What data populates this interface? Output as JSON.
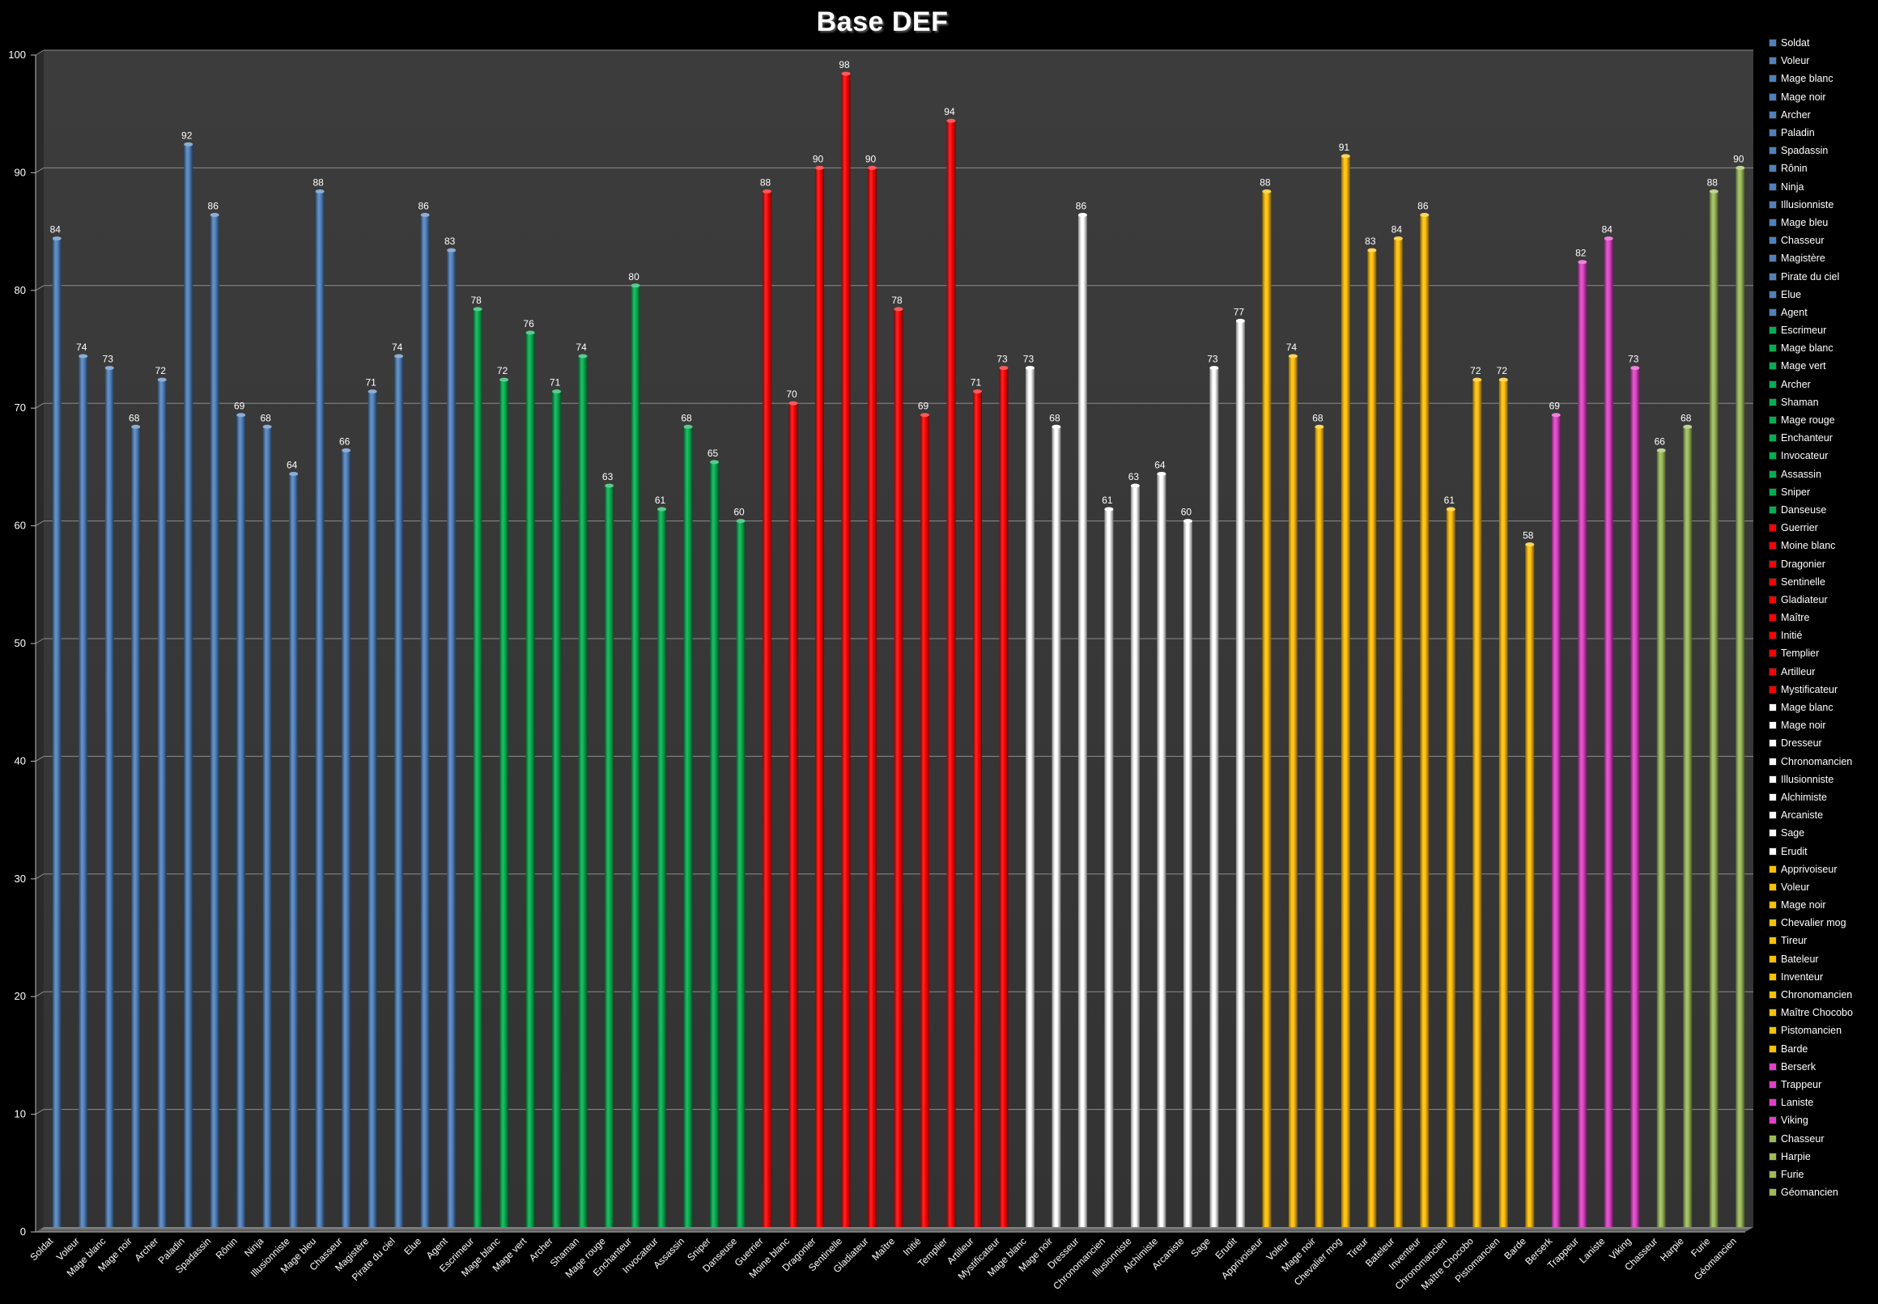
{
  "chart_data": {
    "type": "bar",
    "title": "Base DEF",
    "ylim": [
      0,
      100
    ],
    "yticks": [
      0,
      10,
      20,
      30,
      40,
      50,
      60,
      70,
      80,
      90,
      100
    ],
    "grid": true,
    "legend_position": "right",
    "background": "#3a3a3a",
    "series": [
      {
        "name": "Soldat",
        "color": "#4f81bd",
        "value": 84
      },
      {
        "name": "Voleur",
        "color": "#4f81bd",
        "value": 74
      },
      {
        "name": "Mage blanc",
        "color": "#4f81bd",
        "value": 73
      },
      {
        "name": "Mage noir",
        "color": "#4f81bd",
        "value": 68
      },
      {
        "name": "Archer",
        "color": "#4f81bd",
        "value": 72
      },
      {
        "name": "Paladin",
        "color": "#4f81bd",
        "value": 92
      },
      {
        "name": "Spadassin",
        "color": "#4f81bd",
        "value": 86
      },
      {
        "name": "Rônin",
        "color": "#4f81bd",
        "value": 69
      },
      {
        "name": "Ninja",
        "color": "#4f81bd",
        "value": 68
      },
      {
        "name": "Illusionniste",
        "color": "#4f81bd",
        "value": 64
      },
      {
        "name": "Mage bleu",
        "color": "#4f81bd",
        "value": 88
      },
      {
        "name": "Chasseur",
        "color": "#4f81bd",
        "value": 66
      },
      {
        "name": "Magistère",
        "color": "#4f81bd",
        "value": 71
      },
      {
        "name": "Pirate du ciel",
        "color": "#4f81bd",
        "value": 74
      },
      {
        "name": "Elue",
        "color": "#4f81bd",
        "value": 86
      },
      {
        "name": "Agent",
        "color": "#4f81bd",
        "value": 83
      },
      {
        "name": "Escrimeur",
        "color": "#00b050",
        "value": 78
      },
      {
        "name": "Mage blanc",
        "color": "#00b050",
        "value": 72
      },
      {
        "name": "Mage vert",
        "color": "#00b050",
        "value": 76
      },
      {
        "name": "Archer",
        "color": "#00b050",
        "value": 71
      },
      {
        "name": "Shaman",
        "color": "#00b050",
        "value": 74
      },
      {
        "name": "Mage rouge",
        "color": "#00b050",
        "value": 63
      },
      {
        "name": "Enchanteur",
        "color": "#00b050",
        "value": 80
      },
      {
        "name": "Invocateur",
        "color": "#00b050",
        "value": 61
      },
      {
        "name": "Assassin",
        "color": "#00b050",
        "value": 68
      },
      {
        "name": "Sniper",
        "color": "#00b050",
        "value": 65
      },
      {
        "name": "Danseuse",
        "color": "#00b050",
        "value": 60
      },
      {
        "name": "Guerrier",
        "color": "#ff0000",
        "value": 88
      },
      {
        "name": "Moine blanc",
        "color": "#ff0000",
        "value": 70
      },
      {
        "name": "Dragonier",
        "color": "#ff0000",
        "value": 90
      },
      {
        "name": "Sentinelle",
        "color": "#ff0000",
        "value": 98
      },
      {
        "name": "Gladiateur",
        "color": "#ff0000",
        "value": 90
      },
      {
        "name": "Maître",
        "color": "#ff0000",
        "value": 78
      },
      {
        "name": "Initié",
        "color": "#ff0000",
        "value": 69
      },
      {
        "name": "Templier",
        "color": "#ff0000",
        "value": 94
      },
      {
        "name": "Artilleur",
        "color": "#ff0000",
        "value": 71
      },
      {
        "name": "Mystificateur",
        "color": "#ff0000",
        "value": 73
      },
      {
        "name": "Mage blanc",
        "color": "#ffffff",
        "value": 73
      },
      {
        "name": "Mage noir",
        "color": "#ffffff",
        "value": 68
      },
      {
        "name": "Dresseur",
        "color": "#ffffff",
        "value": 86
      },
      {
        "name": "Chronomancien",
        "color": "#ffffff",
        "value": 61
      },
      {
        "name": "Illusionniste",
        "color": "#ffffff",
        "value": 63
      },
      {
        "name": "Alchimiste",
        "color": "#ffffff",
        "value": 64
      },
      {
        "name": "Arcaniste",
        "color": "#ffffff",
        "value": 60
      },
      {
        "name": "Sage",
        "color": "#ffffff",
        "value": 73
      },
      {
        "name": "Erudit",
        "color": "#ffffff",
        "value": 77
      },
      {
        "name": "Apprivoiseur",
        "color": "#ffc000",
        "value": 88
      },
      {
        "name": "Voleur",
        "color": "#ffc000",
        "value": 74
      },
      {
        "name": "Mage noir",
        "color": "#ffc000",
        "value": 68
      },
      {
        "name": "Chevalier mog",
        "color": "#ffc000",
        "value": 91
      },
      {
        "name": "Tireur",
        "color": "#ffc000",
        "value": 83
      },
      {
        "name": "Bateleur",
        "color": "#ffc000",
        "value": 84
      },
      {
        "name": "Inventeur",
        "color": "#ffc000",
        "value": 86
      },
      {
        "name": "Chronomancien",
        "color": "#ffc000",
        "value": 61
      },
      {
        "name": "Maître Chocobo",
        "color": "#ffc000",
        "value": 72
      },
      {
        "name": "Pistomancien",
        "color": "#ffc000",
        "value": 72
      },
      {
        "name": "Barde",
        "color": "#ffc000",
        "value": 58
      },
      {
        "name": "Berserk",
        "color": "#e040c8",
        "value": 69
      },
      {
        "name": "Trappeur",
        "color": "#e040c8",
        "value": 82
      },
      {
        "name": "Laniste",
        "color": "#e040c8",
        "value": 84
      },
      {
        "name": "Viking",
        "color": "#e040c8",
        "value": 73
      },
      {
        "name": "Chasseur",
        "color": "#9bbb59",
        "value": 66
      },
      {
        "name": "Harpie",
        "color": "#9bbb59",
        "value": 68
      },
      {
        "name": "Furie",
        "color": "#9bbb59",
        "value": 88
      },
      {
        "name": "Géomancien",
        "color": "#9bbb59",
        "value": 90
      }
    ]
  }
}
